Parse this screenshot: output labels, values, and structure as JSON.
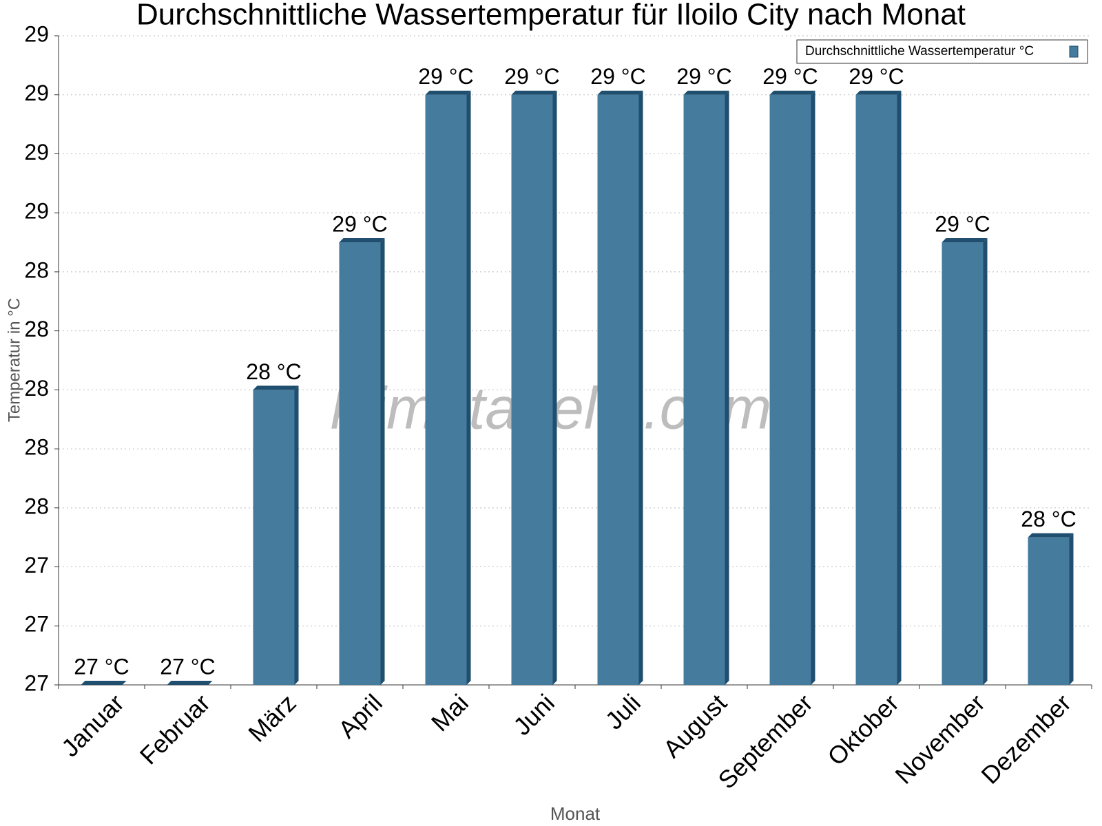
{
  "chart_data": {
    "type": "bar",
    "title": "Durchschnittliche Wassertemperatur für Iloilo City nach Monat",
    "x_label": "Monat",
    "y_label": "Temperatur in °C",
    "watermark": "klimatabelle.com",
    "categories": [
      "Januar",
      "Februar",
      "März",
      "April",
      "Mai",
      "Juni",
      "Juli",
      "August",
      "September",
      "Oktober",
      "November",
      "Dezember"
    ],
    "series": [
      {
        "name": "Durchschnittliche Wassertemperatur °C",
        "color": "#457b9d",
        "values": [
          27,
          27,
          28,
          28.5,
          29,
          29,
          29,
          29,
          29,
          29,
          28.5,
          27.5
        ],
        "value_labels": [
          "27 °C",
          "27 °C",
          "28 °C",
          "29 °C",
          "29 °C",
          "29 °C",
          "29 °C",
          "29 °C",
          "29 °C",
          "29 °C",
          "29 °C",
          "28 °C"
        ]
      }
    ],
    "ylim": [
      27,
      29.2
    ],
    "yticks": [
      {
        "value": 27,
        "label": "27"
      },
      {
        "value": 27.2,
        "label": "27"
      },
      {
        "value": 27.4,
        "label": "27"
      },
      {
        "value": 27.6,
        "label": "28"
      },
      {
        "value": 27.8,
        "label": "28"
      },
      {
        "value": 28,
        "label": "28"
      },
      {
        "value": 28.2,
        "label": "28"
      },
      {
        "value": 28.4,
        "label": "28"
      },
      {
        "value": 28.6,
        "label": "29"
      },
      {
        "value": 28.8,
        "label": "29"
      },
      {
        "value": 29,
        "label": "29"
      },
      {
        "value": 29.2,
        "label": "29"
      }
    ],
    "grid": true,
    "legend": "top-right"
  }
}
